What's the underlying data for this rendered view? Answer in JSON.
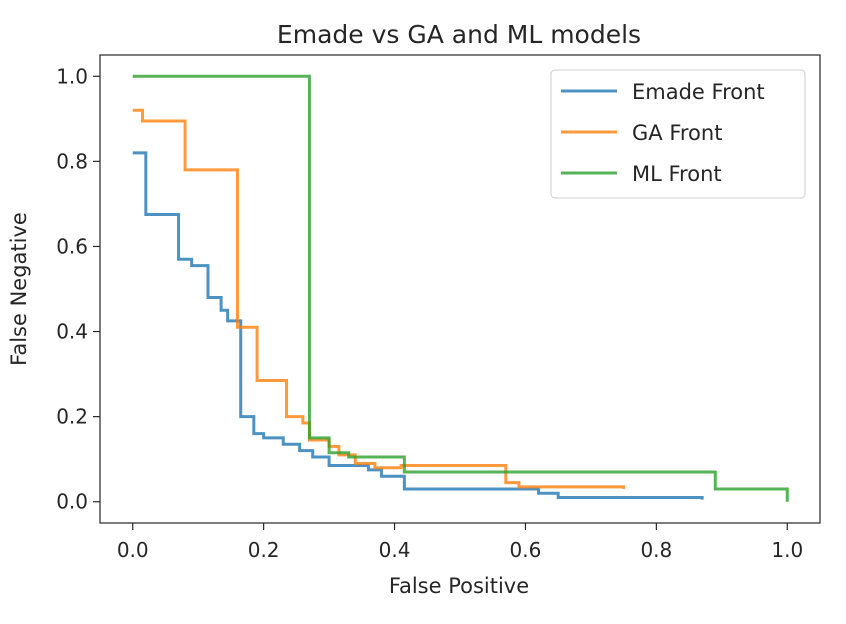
{
  "chart_data": {
    "type": "line",
    "title": "Emade vs GA and ML models",
    "xlabel": "False Positive",
    "ylabel": "False Negative",
    "xlim": [
      -0.05,
      1.05
    ],
    "ylim": [
      -0.05,
      1.05
    ],
    "xticks": [
      "0.0",
      "0.2",
      "0.4",
      "0.6",
      "0.8",
      "1.0"
    ],
    "yticks": [
      "0.0",
      "0.2",
      "0.4",
      "0.6",
      "0.8",
      "1.0"
    ],
    "grid": false,
    "legend_position": "top-right",
    "series": [
      {
        "name": "Emade Front",
        "color": "#1f77b4",
        "step": "post",
        "x": [
          0.0,
          0.02,
          0.07,
          0.09,
          0.115,
          0.135,
          0.145,
          0.165,
          0.185,
          0.2,
          0.23,
          0.255,
          0.275,
          0.3,
          0.32,
          0.36,
          0.38,
          0.415,
          0.62,
          0.65,
          0.87
        ],
        "y": [
          0.82,
          0.675,
          0.57,
          0.555,
          0.48,
          0.45,
          0.425,
          0.2,
          0.16,
          0.15,
          0.135,
          0.12,
          0.105,
          0.085,
          0.085,
          0.075,
          0.06,
          0.03,
          0.02,
          0.01,
          0.005
        ]
      },
      {
        "name": "GA Front",
        "color": "#ff7f0e",
        "step": "post",
        "x": [
          0.0,
          0.015,
          0.08,
          0.16,
          0.19,
          0.235,
          0.26,
          0.27,
          0.3,
          0.315,
          0.34,
          0.37,
          0.41,
          0.57,
          0.59,
          0.75
        ],
        "y": [
          0.92,
          0.895,
          0.78,
          0.41,
          0.285,
          0.2,
          0.185,
          0.145,
          0.13,
          0.11,
          0.09,
          0.08,
          0.085,
          0.045,
          0.035,
          0.03
        ]
      },
      {
        "name": "ML Front",
        "color": "#2ca02c",
        "step": "post",
        "x": [
          0.0,
          0.27,
          0.3,
          0.33,
          0.415,
          0.89,
          1.0
        ],
        "y": [
          1.0,
          0.15,
          0.115,
          0.105,
          0.07,
          0.03,
          0.0
        ]
      }
    ]
  }
}
